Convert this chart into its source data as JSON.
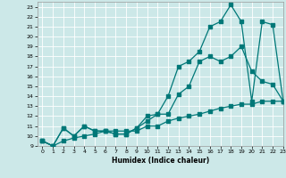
{
  "xlabel": "Humidex (Indice chaleur)",
  "bg_color": "#cce8e8",
  "grid_color": "#ffffff",
  "line_color": "#007878",
  "xlim": [
    -0.5,
    23
  ],
  "ylim": [
    9,
    23.5
  ],
  "xticks": [
    0,
    1,
    2,
    3,
    4,
    5,
    6,
    7,
    8,
    9,
    10,
    11,
    12,
    13,
    14,
    15,
    16,
    17,
    18,
    19,
    20,
    21,
    22,
    23
  ],
  "yticks": [
    9,
    10,
    11,
    12,
    13,
    14,
    15,
    16,
    17,
    18,
    19,
    20,
    21,
    22,
    23
  ],
  "line1_x": [
    0,
    1,
    2,
    3,
    4,
    5,
    6,
    7,
    8,
    9,
    10,
    11,
    12,
    13,
    14,
    15,
    16,
    17,
    18,
    19,
    20,
    21,
    22,
    23
  ],
  "line1_y": [
    9.5,
    9.0,
    10.8,
    10.0,
    11.0,
    10.5,
    10.5,
    10.2,
    10.2,
    10.8,
    11.5,
    12.2,
    12.2,
    14.2,
    15.0,
    17.5,
    18.0,
    17.5,
    18.0,
    19.0,
    16.5,
    15.5,
    15.2,
    13.5
  ],
  "line2_x": [
    0,
    1,
    2,
    3,
    4,
    5,
    6,
    7,
    8,
    9,
    10,
    11,
    12,
    13,
    14,
    15,
    16,
    17,
    18,
    19,
    20,
    21,
    22,
    23
  ],
  "line2_y": [
    9.5,
    9.0,
    10.8,
    10.0,
    11.0,
    10.5,
    10.5,
    10.2,
    10.2,
    10.8,
    12.0,
    12.2,
    14.0,
    17.0,
    17.5,
    18.5,
    21.0,
    21.5,
    23.2,
    21.5,
    13.5,
    21.5,
    21.2,
    13.5
  ],
  "line3_x": [
    0,
    1,
    2,
    3,
    4,
    5,
    6,
    7,
    8,
    9,
    10,
    11,
    12,
    13,
    14,
    15,
    16,
    17,
    18,
    19,
    20,
    21,
    22,
    23
  ],
  "line3_y": [
    9.5,
    9.0,
    9.5,
    9.8,
    10.0,
    10.2,
    10.5,
    10.5,
    10.5,
    10.5,
    11.0,
    11.0,
    11.5,
    11.8,
    12.0,
    12.2,
    12.5,
    12.8,
    13.0,
    13.2,
    13.2,
    13.5,
    13.5,
    13.5
  ]
}
